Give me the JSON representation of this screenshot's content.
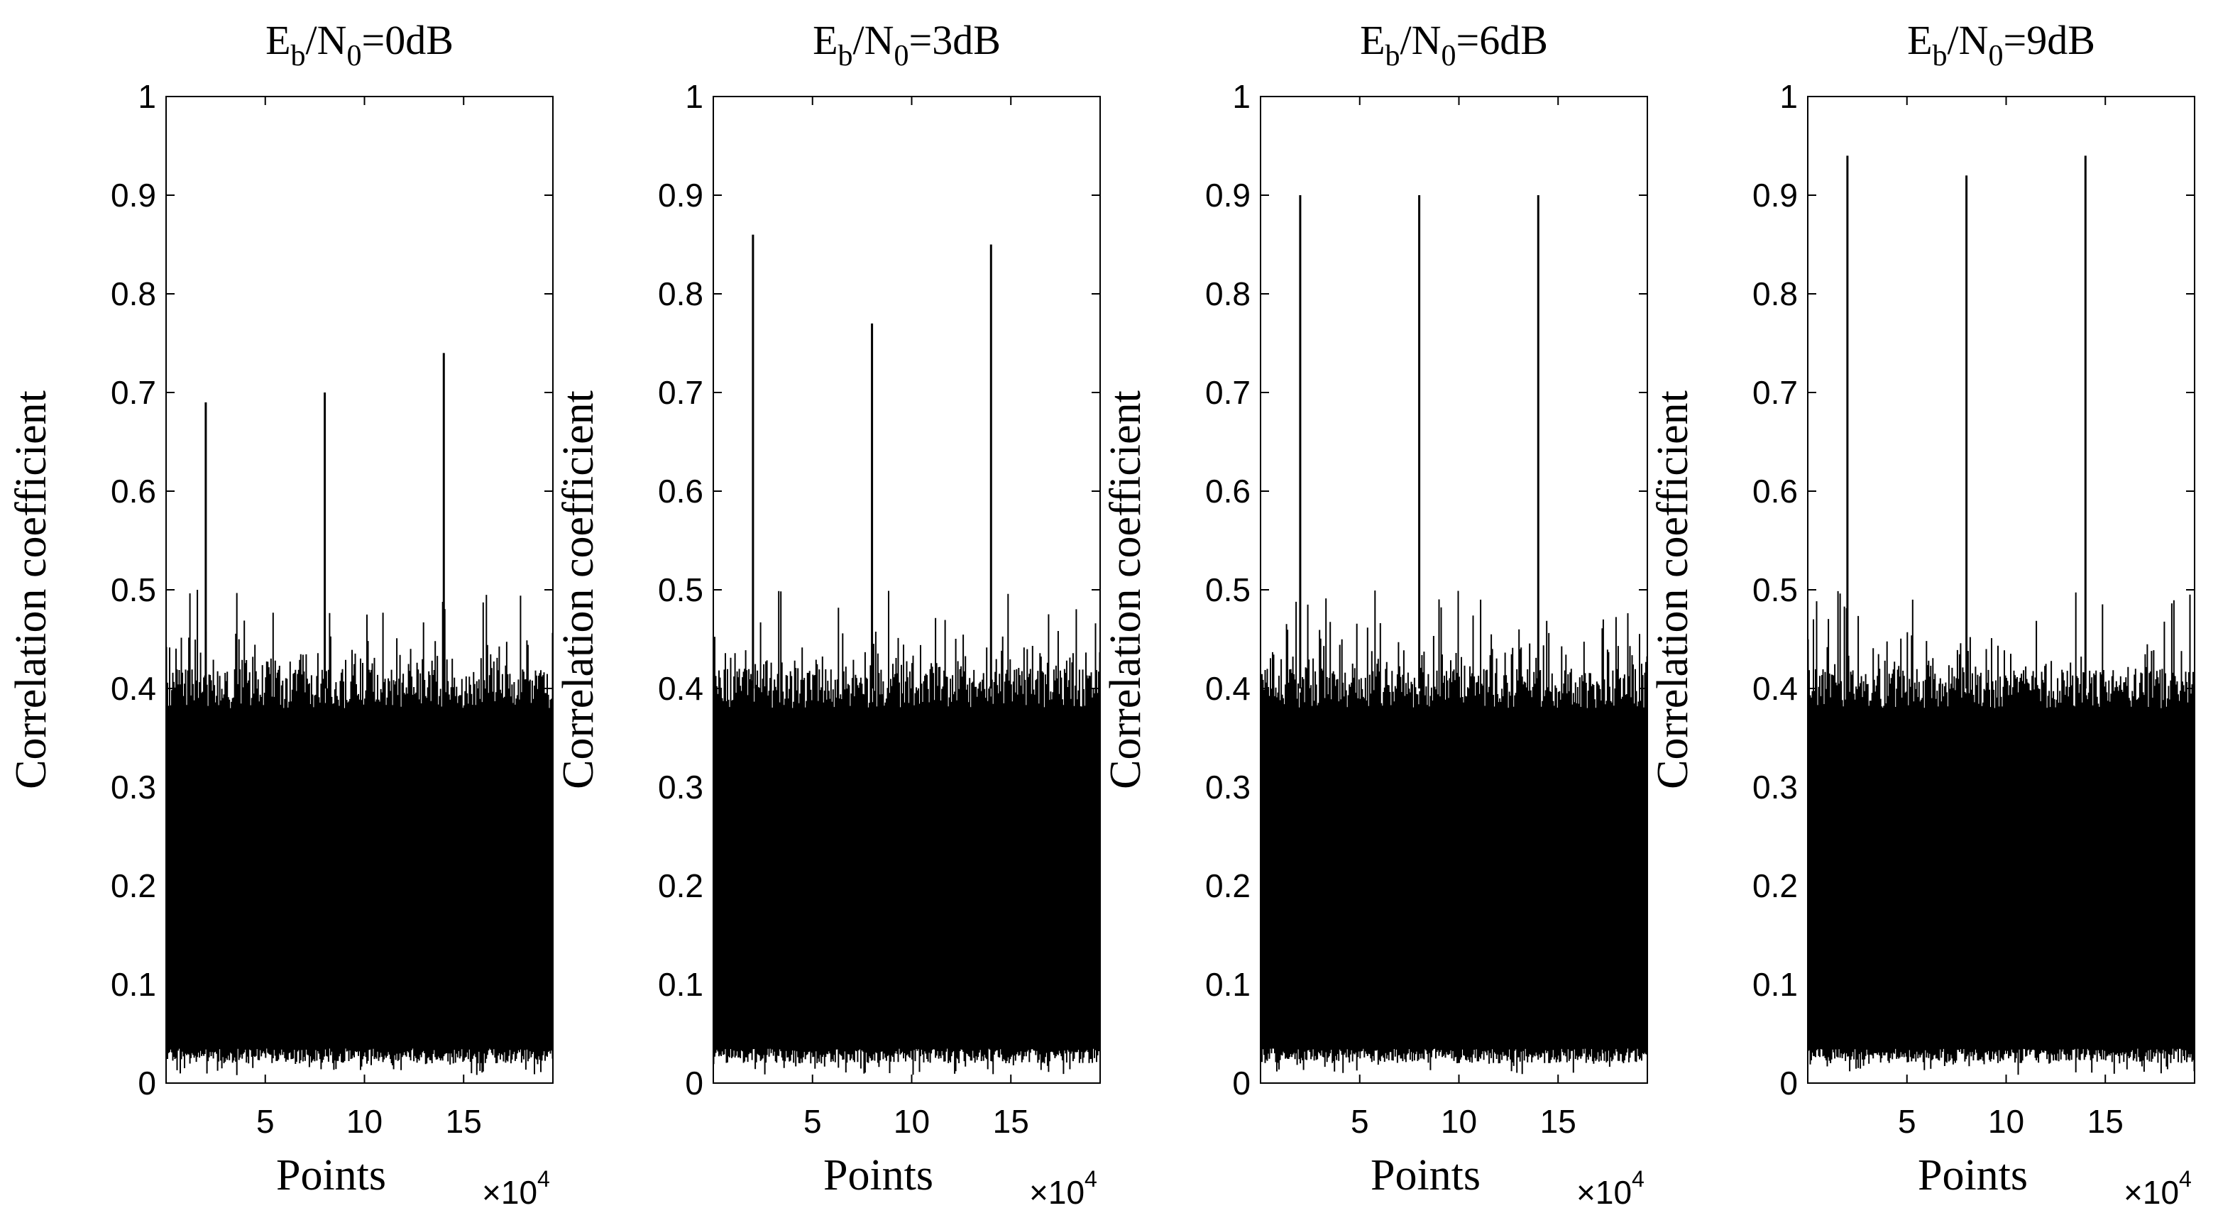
{
  "chart_data": [
    {
      "type": "line",
      "title": "Eb/N0=0dB",
      "title_parts": {
        "base": "E",
        "sub1": "b",
        "mid": "/N",
        "sub2": "0",
        "tail": "=0dB"
      },
      "xlabel": "Points",
      "ylabel": "Correlation coefficient",
      "x_multiplier": {
        "base": "×10",
        "exp": "4"
      },
      "xlim": [
        0,
        19.5
      ],
      "ylim": [
        0,
        1
      ],
      "x_ticks": [
        5,
        10,
        15
      ],
      "x_tick_labels": [
        "5",
        "10",
        "15"
      ],
      "y_ticks": [
        0,
        0.1,
        0.2,
        0.3,
        0.4,
        0.5,
        0.6,
        0.7,
        0.8,
        0.9,
        1
      ],
      "y_tick_labels": [
        "0",
        "0.1",
        "0.2",
        "0.3",
        "0.4",
        "0.5",
        "0.6",
        "0.7",
        "0.8",
        "0.9",
        "1"
      ],
      "noise_floor_range": [
        0.02,
        0.45
      ],
      "peaks": [
        {
          "x": 2.0,
          "y": 0.69
        },
        {
          "x": 8.0,
          "y": 0.7
        },
        {
          "x": 14.0,
          "y": 0.74
        }
      ]
    },
    {
      "type": "line",
      "title": "Eb/N0=3dB",
      "title_parts": {
        "base": "E",
        "sub1": "b",
        "mid": "/N",
        "sub2": "0",
        "tail": "=3dB"
      },
      "xlabel": "Points",
      "ylabel": "Correlation coefficient",
      "x_multiplier": {
        "base": "×10",
        "exp": "4"
      },
      "xlim": [
        0,
        19.5
      ],
      "ylim": [
        0,
        1
      ],
      "x_ticks": [
        5,
        10,
        15
      ],
      "x_tick_labels": [
        "5",
        "10",
        "15"
      ],
      "y_ticks": [
        0,
        0.1,
        0.2,
        0.3,
        0.4,
        0.5,
        0.6,
        0.7,
        0.8,
        0.9,
        1
      ],
      "y_tick_labels": [
        "0",
        "0.1",
        "0.2",
        "0.3",
        "0.4",
        "0.5",
        "0.6",
        "0.7",
        "0.8",
        "0.9",
        "1"
      ],
      "noise_floor_range": [
        0.02,
        0.45
      ],
      "peaks": [
        {
          "x": 2.0,
          "y": 0.86
        },
        {
          "x": 8.0,
          "y": 0.77
        },
        {
          "x": 14.0,
          "y": 0.85
        }
      ]
    },
    {
      "type": "line",
      "title": "Eb/N0=6dB",
      "title_parts": {
        "base": "E",
        "sub1": "b",
        "mid": "/N",
        "sub2": "0",
        "tail": "=6dB"
      },
      "xlabel": "Points",
      "ylabel": "Correlation coefficient",
      "x_multiplier": {
        "base": "×10",
        "exp": "4"
      },
      "xlim": [
        0,
        19.5
      ],
      "ylim": [
        0,
        1
      ],
      "x_ticks": [
        5,
        10,
        15
      ],
      "x_tick_labels": [
        "5",
        "10",
        "15"
      ],
      "y_ticks": [
        0,
        0.1,
        0.2,
        0.3,
        0.4,
        0.5,
        0.6,
        0.7,
        0.8,
        0.9,
        1
      ],
      "y_tick_labels": [
        "0",
        "0.1",
        "0.2",
        "0.3",
        "0.4",
        "0.5",
        "0.6",
        "0.7",
        "0.8",
        "0.9",
        "1"
      ],
      "noise_floor_range": [
        0.02,
        0.45
      ],
      "peaks": [
        {
          "x": 2.0,
          "y": 0.9
        },
        {
          "x": 8.0,
          "y": 0.9
        },
        {
          "x": 14.0,
          "y": 0.9
        }
      ]
    },
    {
      "type": "line",
      "title": "Eb/N0=9dB",
      "title_parts": {
        "base": "E",
        "sub1": "b",
        "mid": "/N",
        "sub2": "0",
        "tail": "=9dB"
      },
      "xlabel": "Points",
      "ylabel": "Correlation coefficient",
      "x_multiplier": {
        "base": "×10",
        "exp": "4"
      },
      "xlim": [
        0,
        19.5
      ],
      "ylim": [
        0,
        1
      ],
      "x_ticks": [
        5,
        10,
        15
      ],
      "x_tick_labels": [
        "5",
        "10",
        "15"
      ],
      "y_ticks": [
        0,
        0.1,
        0.2,
        0.3,
        0.4,
        0.5,
        0.6,
        0.7,
        0.8,
        0.9,
        1
      ],
      "y_tick_labels": [
        "0",
        "0.1",
        "0.2",
        "0.3",
        "0.4",
        "0.5",
        "0.6",
        "0.7",
        "0.8",
        "0.9",
        "1"
      ],
      "noise_floor_range": [
        0.02,
        0.45
      ],
      "peaks": [
        {
          "x": 2.0,
          "y": 0.94
        },
        {
          "x": 8.0,
          "y": 0.92
        },
        {
          "x": 14.0,
          "y": 0.94
        }
      ]
    }
  ],
  "colors": {
    "line": "#000000",
    "axis": "#000000",
    "background": "#ffffff"
  }
}
